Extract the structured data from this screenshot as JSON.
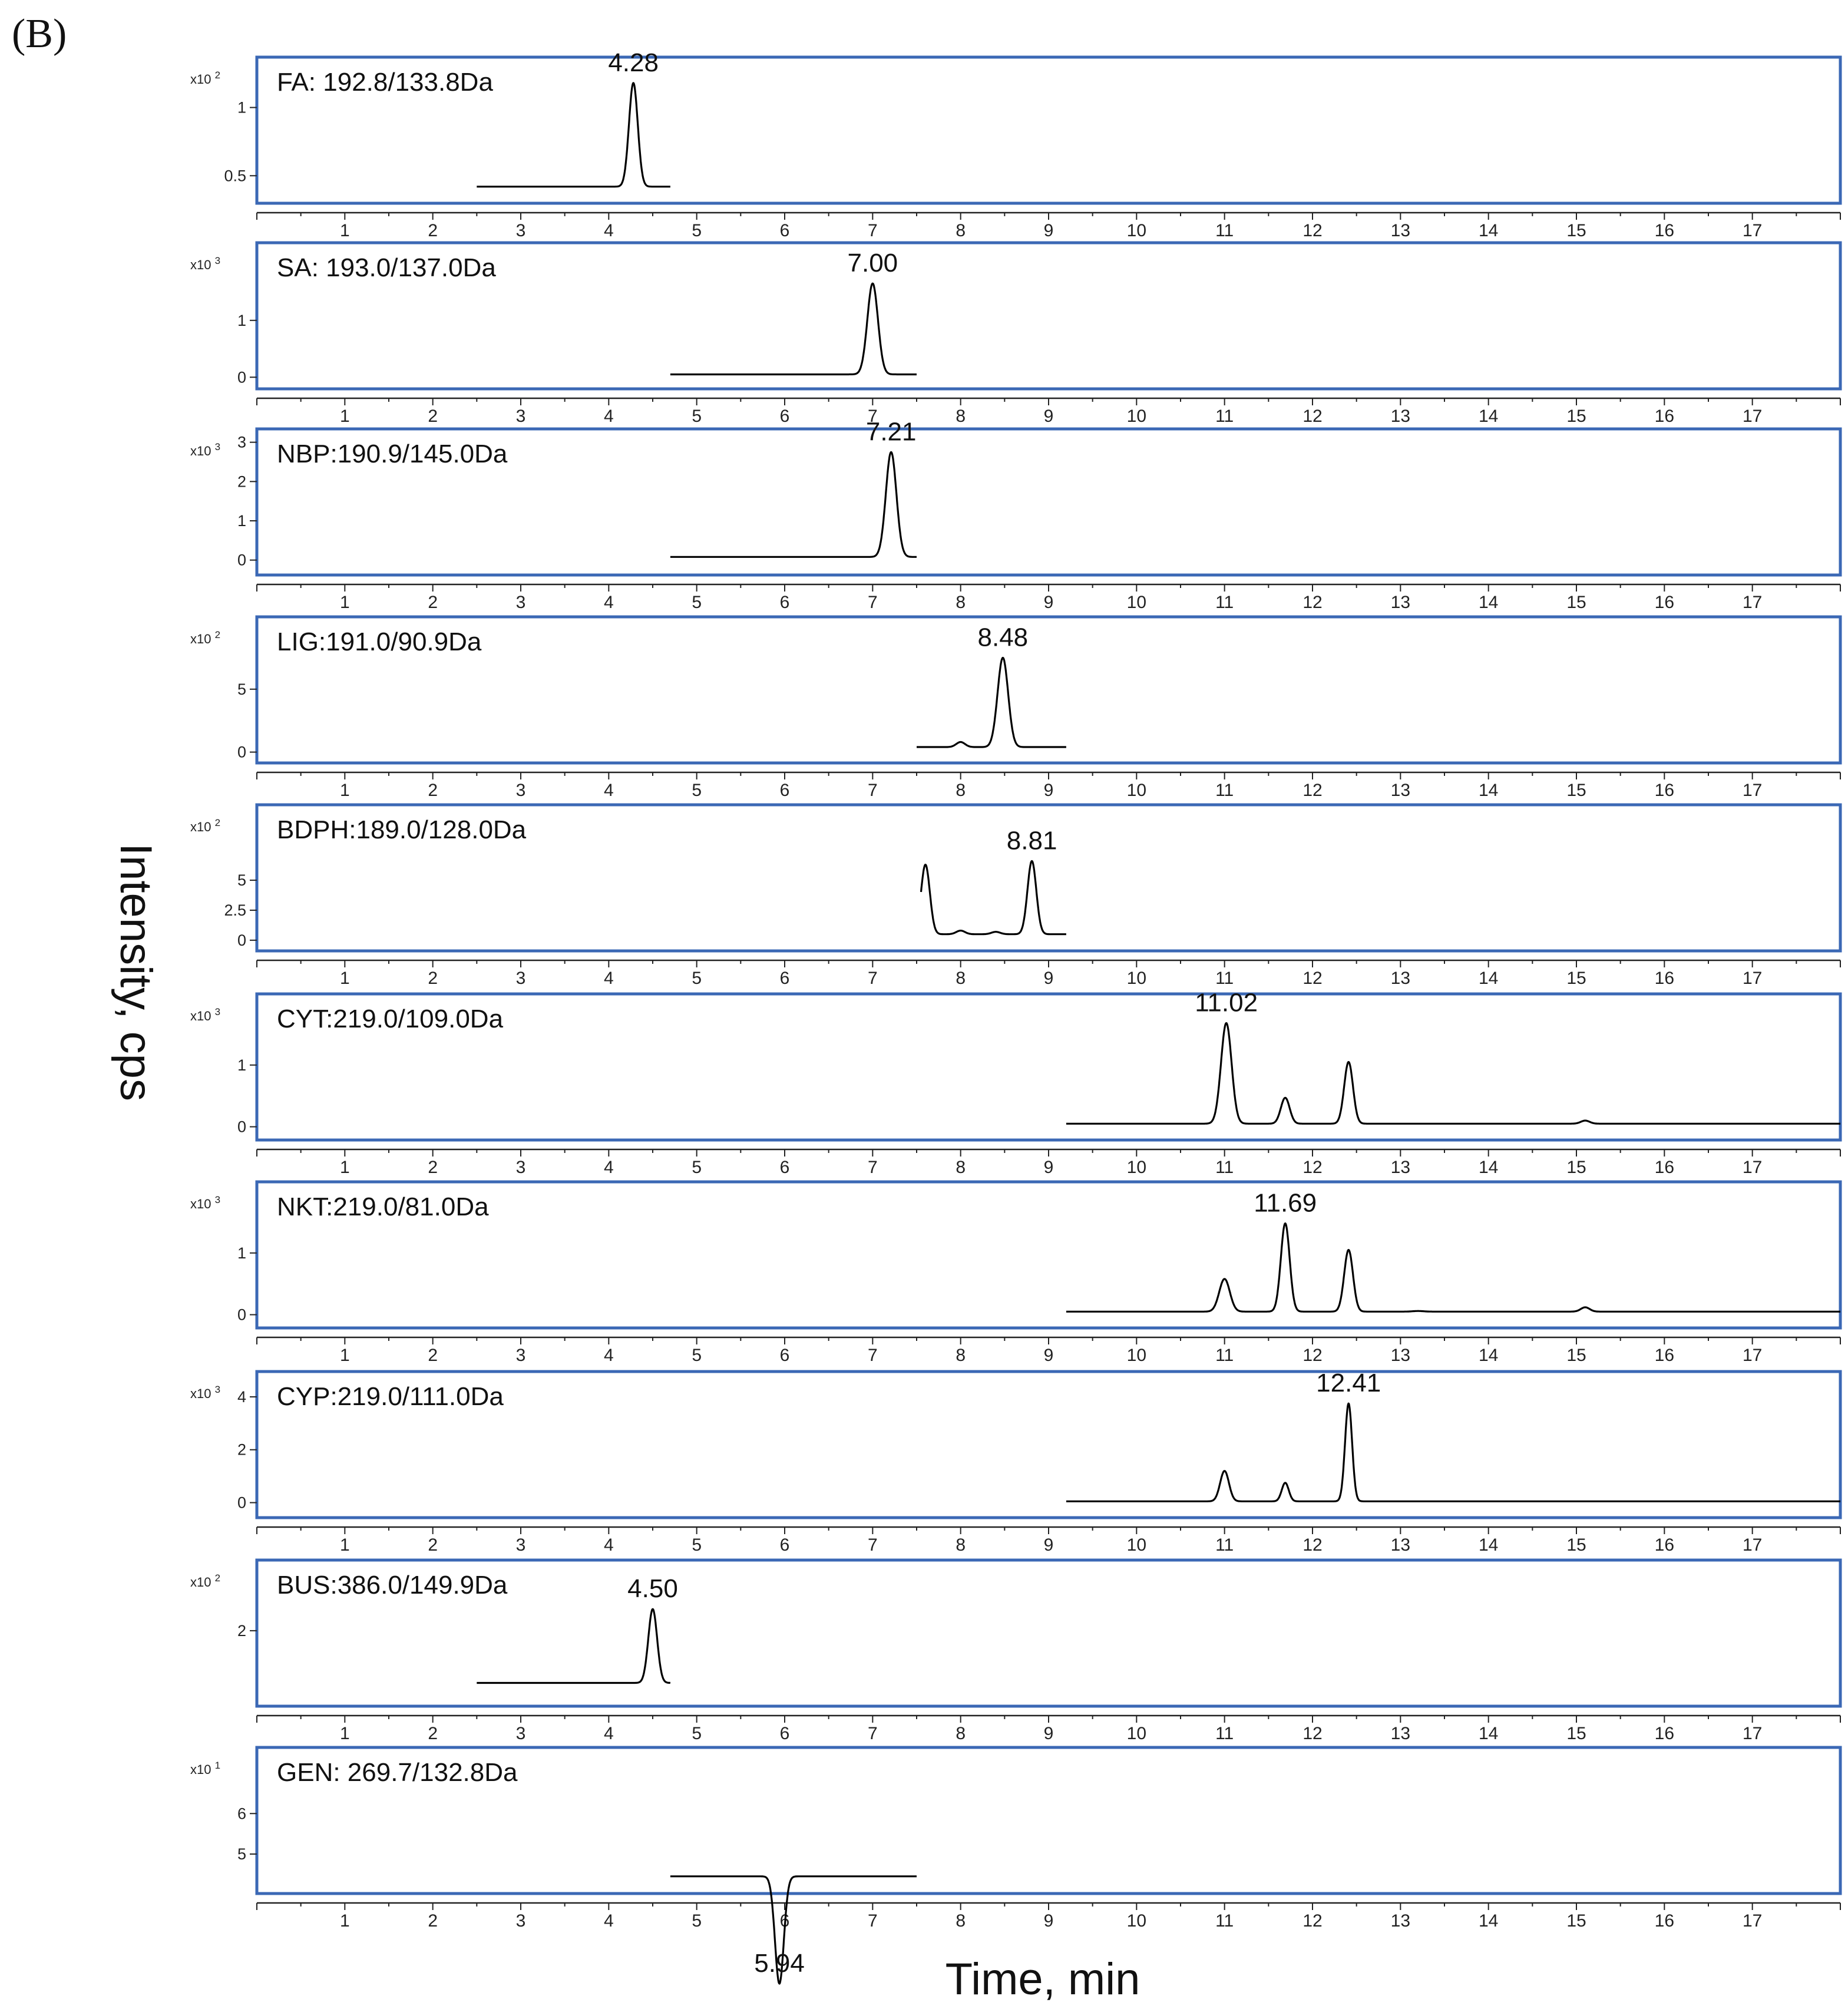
{
  "panel_label": "(B)",
  "chart_data": {
    "type": "line",
    "xlabel": "Time, min",
    "ylabel": "Intensity, cps",
    "xlim": [
      0,
      18
    ],
    "xticks": [
      1,
      2,
      3,
      4,
      5,
      6,
      7,
      8,
      9,
      10,
      11,
      12,
      13,
      14,
      15,
      16,
      17
    ],
    "panels": [
      {
        "title": "FA: 192.8/133.8Da",
        "multiplier": "x10",
        "exponent": "2",
        "ylim": [
          0.35,
          1.3
        ],
        "yticks": [
          {
            "v": 0.5,
            "label": "0.5"
          },
          {
            "v": 1,
            "label": "1"
          }
        ],
        "baseline": 0.42,
        "trace_range": [
          2.5,
          4.7
        ],
        "peaks": [
          {
            "rt": 4.28,
            "height": 1.18,
            "width": 0.05
          }
        ],
        "annotation": {
          "rt": 4.28,
          "label": "4.28"
        }
      },
      {
        "title": "SA: 193.0/137.0Da",
        "multiplier": "x10",
        "exponent": "3",
        "ylim": [
          -0.08,
          2.2
        ],
        "yticks": [
          {
            "v": 0,
            "label": "0"
          },
          {
            "v": 1,
            "label": "1"
          }
        ],
        "baseline": 0.05,
        "trace_range": [
          4.7,
          7.5
        ],
        "peaks": [
          {
            "rt": 7.0,
            "height": 1.65,
            "width": 0.06
          }
        ],
        "annotation": {
          "rt": 7.0,
          "label": "7.00"
        }
      },
      {
        "title": "NBP:190.9/145.0Da",
        "multiplier": "x10",
        "exponent": "3",
        "ylim": [
          -0.2,
          3.1
        ],
        "yticks": [
          {
            "v": 0,
            "label": "0"
          },
          {
            "v": 1,
            "label": "1"
          },
          {
            "v": 2,
            "label": "2"
          },
          {
            "v": 3,
            "label": "3"
          }
        ],
        "baseline": 0.08,
        "trace_range": [
          4.7,
          7.5
        ],
        "peaks": [
          {
            "rt": 7.21,
            "height": 2.75,
            "width": 0.06
          }
        ],
        "annotation": {
          "rt": 7.21,
          "label": "7.21"
        }
      },
      {
        "title": "LIG:191.0/90.9Da",
        "multiplier": "x10",
        "exponent": "2",
        "ylim": [
          -0.3,
          10
        ],
        "yticks": [
          {
            "v": 0,
            "label": "0"
          },
          {
            "v": 5,
            "label": "5"
          }
        ],
        "baseline": 0.4,
        "trace_range": [
          7.5,
          9.2
        ],
        "peaks": [
          {
            "rt": 8.0,
            "height": 0.8,
            "width": 0.05
          },
          {
            "rt": 8.48,
            "height": 7.5,
            "width": 0.06
          }
        ],
        "annotation": {
          "rt": 8.48,
          "label": "8.48"
        }
      },
      {
        "title": "BDPH:189.0/128.0Da",
        "multiplier": "x10",
        "exponent": "2",
        "ylim": [
          -0.3,
          10.5
        ],
        "yticks": [
          {
            "v": 0,
            "label": "0"
          },
          {
            "v": 2.5,
            "label": "2.5"
          },
          {
            "v": 5,
            "label": "5"
          }
        ],
        "baseline": 0.5,
        "trace_range": [
          7.55,
          9.2
        ],
        "peaks": [
          {
            "rt": 7.6,
            "height": 6.3,
            "width": 0.05
          },
          {
            "rt": 8.0,
            "height": 0.8,
            "width": 0.05
          },
          {
            "rt": 8.4,
            "height": 0.7,
            "width": 0.05
          },
          {
            "rt": 8.81,
            "height": 6.6,
            "width": 0.05
          }
        ],
        "annotation": {
          "rt": 8.81,
          "label": "8.81"
        }
      },
      {
        "title": "CYT:219.0/109.0Da",
        "multiplier": "x10",
        "exponent": "3",
        "ylim": [
          -0.1,
          2.0
        ],
        "yticks": [
          {
            "v": 0,
            "label": "0"
          },
          {
            "v": 1,
            "label": "1"
          }
        ],
        "baseline": 0.05,
        "trace_range": [
          9.2,
          18
        ],
        "peaks": [
          {
            "rt": 11.02,
            "height": 1.68,
            "width": 0.06
          },
          {
            "rt": 11.69,
            "height": 0.47,
            "width": 0.05
          },
          {
            "rt": 12.41,
            "height": 1.05,
            "width": 0.05
          },
          {
            "rt": 15.1,
            "height": 0.1,
            "width": 0.05
          }
        ],
        "annotation": {
          "rt": 11.02,
          "label": "11.02"
        }
      },
      {
        "title": "NKT:219.0/81.0Da",
        "multiplier": "x10",
        "exponent": "3",
        "ylim": [
          -0.1,
          2.0
        ],
        "yticks": [
          {
            "v": 0,
            "label": "0"
          },
          {
            "v": 1,
            "label": "1"
          }
        ],
        "baseline": 0.05,
        "trace_range": [
          9.2,
          18
        ],
        "peaks": [
          {
            "rt": 11.0,
            "height": 0.58,
            "width": 0.06
          },
          {
            "rt": 11.69,
            "height": 1.48,
            "width": 0.05
          },
          {
            "rt": 12.41,
            "height": 1.05,
            "width": 0.05
          },
          {
            "rt": 13.2,
            "height": 0.06,
            "width": 0.06
          },
          {
            "rt": 15.1,
            "height": 0.12,
            "width": 0.05
          }
        ],
        "annotation": {
          "rt": 11.69,
          "label": "11.69"
        }
      },
      {
        "title": "CYP:219.0/111.0Da",
        "multiplier": "x10",
        "exponent": "3",
        "ylim": [
          -0.3,
          4.6
        ],
        "yticks": [
          {
            "v": 0,
            "label": "0"
          },
          {
            "v": 2,
            "label": "2"
          },
          {
            "v": 4,
            "label": "4"
          }
        ],
        "baseline": 0.05,
        "trace_range": [
          9.2,
          18
        ],
        "peaks": [
          {
            "rt": 11.0,
            "height": 1.2,
            "width": 0.05
          },
          {
            "rt": 11.69,
            "height": 0.75,
            "width": 0.04
          },
          {
            "rt": 12.41,
            "height": 3.75,
            "width": 0.04
          }
        ],
        "annotation": {
          "rt": 12.41,
          "label": "12.41"
        }
      },
      {
        "title": "BUS:386.0/149.9Da",
        "multiplier": "x10",
        "exponent": "2",
        "ylim": [
          0.1,
          3.7
        ],
        "yticks": [
          {
            "v": 2,
            "label": "2"
          }
        ],
        "baseline": 0.55,
        "trace_range": [
          2.5,
          4.7
        ],
        "peaks": [
          {
            "rt": 4.5,
            "height": 2.6,
            "width": 0.05
          }
        ],
        "annotation": {
          "rt": 4.5,
          "label": "4.50"
        }
      },
      {
        "title": "GEN: 269.7/132.8Da",
        "multiplier": "x10",
        "exponent": "1",
        "ylim": [
          4.2,
          7.4
        ],
        "yticks": [
          {
            "v": 5,
            "label": "5"
          },
          {
            "v": 6,
            "label": "6"
          }
        ],
        "baseline": 4.45,
        "trace_range": [
          4.7,
          7.5
        ],
        "peaks": [
          {
            "rt": 5.94,
            "height": 1.8,
            "width": 0.05
          }
        ],
        "annotation": {
          "rt": 5.94,
          "label": "5.94"
        }
      }
    ]
  }
}
